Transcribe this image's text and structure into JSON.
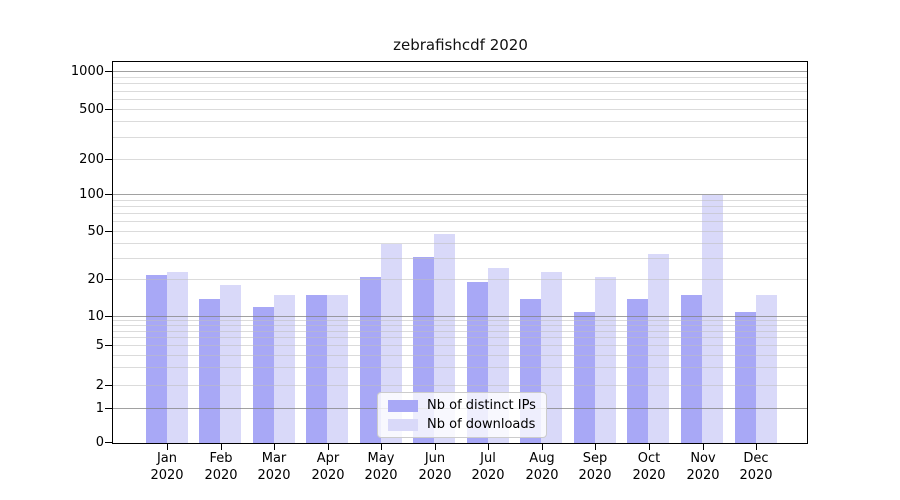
{
  "chart_data": {
    "type": "bar",
    "title": "zebrafishcdf 2020",
    "categories": [
      "Jan",
      "Feb",
      "Mar",
      "Apr",
      "May",
      "Jun",
      "Jul",
      "Aug",
      "Sep",
      "Oct",
      "Nov",
      "Dec"
    ],
    "x_year_label": "2020",
    "series": [
      {
        "name": "Nb of distinct IPs",
        "color": "#a8a8f6",
        "values": [
          22,
          14,
          12,
          15,
          21,
          31,
          19,
          14,
          11,
          14,
          15,
          11
        ]
      },
      {
        "name": "Nb of downloads",
        "color": "#d9d9f9",
        "values": [
          23,
          18,
          15,
          15,
          40,
          48,
          25,
          23,
          21,
          33,
          100,
          15
        ]
      }
    ],
    "y_ticks": [
      0,
      1,
      2,
      5,
      10,
      20,
      50,
      100,
      200,
      500,
      1000
    ],
    "y_scale": "pseudo-log",
    "ylim": [
      0,
      1200
    ],
    "xlabel": "",
    "ylabel": "",
    "grid": "major and minor horizontal gridlines, drawn above bars",
    "legend_position": "bottom-center inside plot",
    "spine_color": "#000000",
    "major_grid_color": "#c6c6c6",
    "minor_grid_color": "#e8e8e8"
  }
}
